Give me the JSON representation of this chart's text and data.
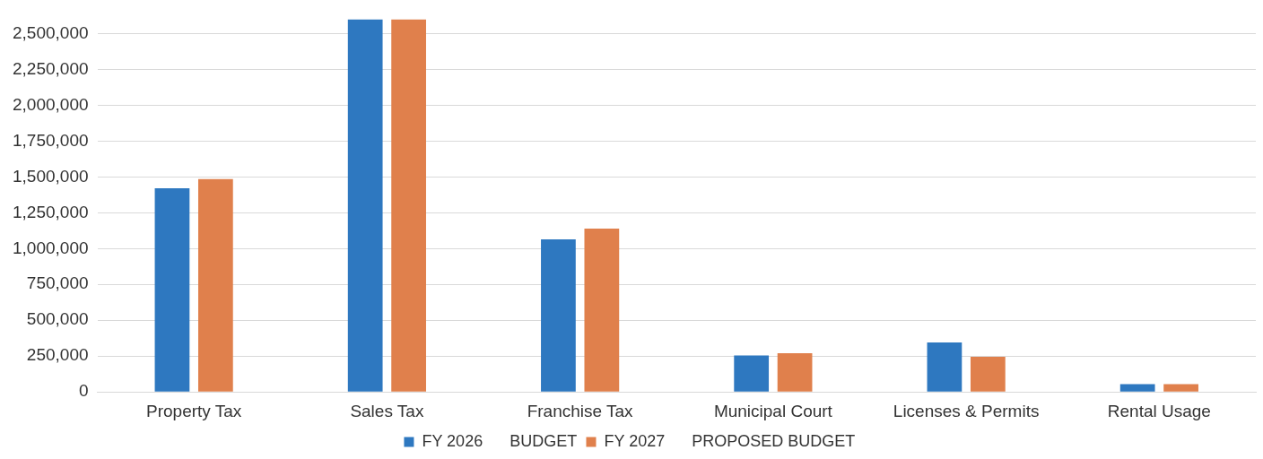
{
  "chart_data": {
    "type": "bar",
    "categories": [
      "Property Tax",
      "Sales Tax",
      "Franchise Tax",
      "Municipal Court",
      "Licenses & Permits",
      "Rental Usage"
    ],
    "series": [
      {
        "name": "FY 2026      BUDGET",
        "color": "#2e78c0",
        "values": [
          1420000,
          2600000,
          1065000,
          255000,
          345000,
          55000
        ]
      },
      {
        "name": "FY 2027      PROPOSED BUDGET",
        "color": "#e0804c",
        "values": [
          1485000,
          2600000,
          1140000,
          270000,
          245000,
          55000
        ]
      }
    ],
    "ylim": [
      0,
      2600000
    ],
    "yticks": [
      0,
      {
        "value": 250000,
        "label": "250,000"
      },
      {
        "value": 500000,
        "label": "500,000"
      },
      {
        "value": 750000,
        "label": "750,000"
      },
      {
        "value": 1000000,
        "label": "1,000,000"
      },
      {
        "value": 1250000,
        "label": "1,250,000"
      },
      {
        "value": 1500000,
        "label": "1,500,000"
      },
      {
        "value": 1750000,
        "label": "1,750,000"
      },
      {
        "value": 2000000,
        "label": "2,000,000"
      },
      {
        "value": 2250000,
        "label": "2,250,000"
      },
      {
        "value": 2500000,
        "label": "2,500,000"
      }
    ],
    "grid": "y",
    "legend": "bottom"
  }
}
